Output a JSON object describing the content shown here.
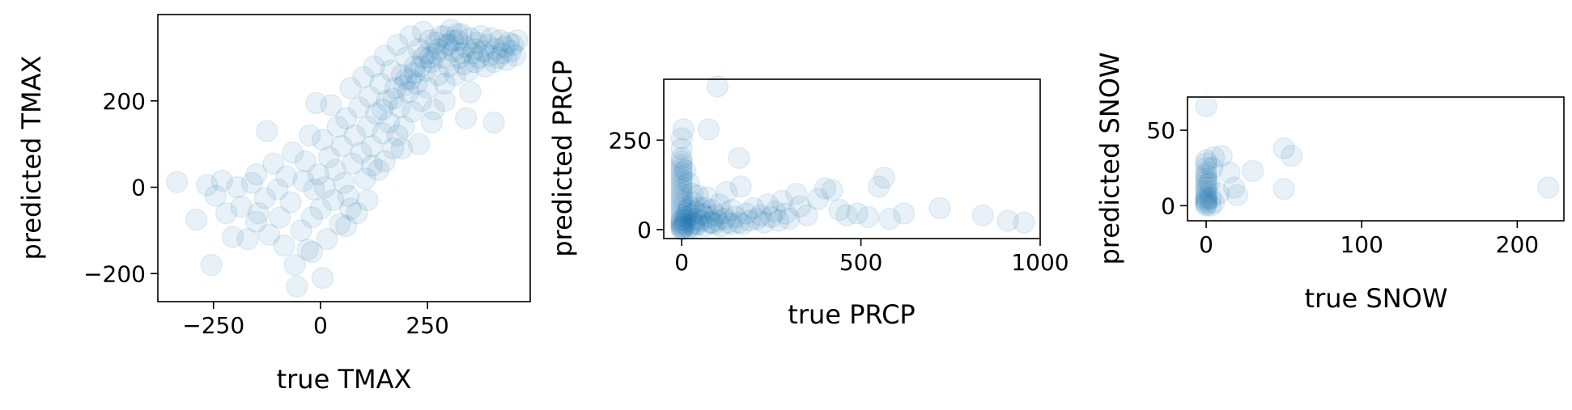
{
  "chart_data": [
    {
      "type": "scatter",
      "name_key": "tmax",
      "xlabel": "true TMAX",
      "ylabel": "predicted TMAX",
      "xlim": [
        -380,
        490
      ],
      "ylim": [
        -265,
        400
      ],
      "xticks": [
        -250,
        0,
        250
      ],
      "yticks": [
        -200,
        0,
        200
      ],
      "xtick_labels": [
        "−250",
        "0",
        "250"
      ],
      "ytick_labels": [
        "−200",
        "0",
        "200"
      ],
      "grid": false,
      "color": "#1f77b4",
      "marker_alpha": 0.1,
      "points": [
        [
          -335,
          12
        ],
        [
          -290,
          -75
        ],
        [
          -265,
          5
        ],
        [
          -255,
          -180
        ],
        [
          -245,
          -20
        ],
        [
          -230,
          15
        ],
        [
          -220,
          -60
        ],
        [
          -205,
          -115
        ],
        [
          -195,
          0
        ],
        [
          -185,
          -45
        ],
        [
          -170,
          -120
        ],
        [
          -160,
          10
        ],
        [
          -150,
          30
        ],
        [
          -145,
          -60
        ],
        [
          -130,
          -25
        ],
        [
          -125,
          130
        ],
        [
          -120,
          -110
        ],
        [
          -110,
          55
        ],
        [
          -100,
          -5
        ],
        [
          -95,
          -70
        ],
        [
          -85,
          -135
        ],
        [
          -80,
          25
        ],
        [
          -70,
          -35
        ],
        [
          -65,
          80
        ],
        [
          -60,
          -180
        ],
        [
          -55,
          -230
        ],
        [
          -45,
          -100
        ],
        [
          -40,
          15
        ],
        [
          -35,
          60
        ],
        [
          -30,
          -145
        ],
        [
          -25,
          120
        ],
        [
          -20,
          -70
        ],
        [
          -15,
          -5
        ],
        [
          -10,
          195
        ],
        [
          -5,
          30
        ],
        [
          0,
          -50
        ],
        [
          5,
          -210
        ],
        [
          5,
          110
        ],
        [
          10,
          0
        ],
        [
          15,
          -120
        ],
        [
          20,
          70
        ],
        [
          25,
          190
        ],
        [
          30,
          -30
        ],
        [
          35,
          40
        ],
        [
          40,
          140
        ],
        [
          45,
          -85
        ],
        [
          50,
          95
        ],
        [
          55,
          10
        ],
        [
          60,
          160
        ],
        [
          65,
          -20
        ],
        [
          70,
          230
        ],
        [
          75,
          55
        ],
        [
          80,
          120
        ],
        [
          85,
          -60
        ],
        [
          90,
          185
        ],
        [
          95,
          80
        ],
        [
          100,
          255
        ],
        [
          105,
          20
        ],
        [
          110,
          140
        ],
        [
          115,
          210
        ],
        [
          120,
          95
        ],
        [
          125,
          280
        ],
        [
          130,
          170
        ],
        [
          135,
          40
        ],
        [
          140,
          240
        ],
        [
          145,
          125
        ],
        [
          150,
          305
        ],
        [
          155,
          200
        ],
        [
          160,
          150
        ],
        [
          165,
          270
        ],
        [
          170,
          90
        ],
        [
          175,
          230
        ],
        [
          180,
          330
        ],
        [
          185,
          185
        ],
        [
          190,
          260
        ],
        [
          195,
          140
        ],
        [
          200,
          300
        ],
        [
          205,
          220
        ],
        [
          210,
          350
        ],
        [
          215,
          175
        ],
        [
          220,
          280
        ],
        [
          225,
          240
        ],
        [
          230,
          320
        ],
        [
          235,
          200
        ],
        [
          240,
          360
        ],
        [
          245,
          270
        ],
        [
          250,
          230
        ],
        [
          255,
          340
        ],
        [
          260,
          290
        ],
        [
          265,
          180
        ],
        [
          270,
          310
        ],
        [
          275,
          260
        ],
        [
          280,
          350
        ],
        [
          285,
          300
        ],
        [
          290,
          240
        ],
        [
          295,
          330
        ],
        [
          300,
          280
        ],
        [
          305,
          365
        ],
        [
          310,
          315
        ],
        [
          315,
          260
        ],
        [
          320,
          340
        ],
        [
          325,
          300
        ],
        [
          330,
          355
        ],
        [
          335,
          285
        ],
        [
          340,
          325
        ],
        [
          345,
          270
        ],
        [
          350,
          345
        ],
        [
          355,
          310
        ],
        [
          360,
          290
        ],
        [
          365,
          335
        ],
        [
          370,
          300
        ],
        [
          375,
          350
        ],
        [
          380,
          315
        ],
        [
          385,
          280
        ],
        [
          390,
          330
        ],
        [
          395,
          305
        ],
        [
          400,
          345
        ],
        [
          405,
          290
        ],
        [
          410,
          320
        ],
        [
          415,
          300
        ],
        [
          420,
          340
        ],
        [
          425,
          310
        ],
        [
          430,
          325
        ],
        [
          435,
          295
        ],
        [
          440,
          335
        ],
        [
          445,
          315
        ],
        [
          450,
          330
        ],
        [
          455,
          305
        ],
        [
          460,
          340
        ],
        [
          150,
          60
        ],
        [
          190,
          90
        ],
        [
          260,
          150
        ],
        [
          340,
          160
        ],
        [
          405,
          150
        ],
        [
          180,
          120
        ],
        [
          110,
          -30
        ],
        [
          -20,
          -150
        ],
        [
          60,
          -90
        ],
        [
          230,
          100
        ],
        [
          120,
          50
        ],
        [
          70,
          -50
        ],
        [
          290,
          200
        ],
        [
          350,
          220
        ],
        [
          -150,
          -80
        ],
        [
          200,
          250
        ],
        [
          240,
          300
        ],
        [
          275,
          320
        ],
        [
          310,
          340
        ],
        [
          330,
          310
        ],
        [
          360,
          320
        ],
        [
          290,
          350
        ],
        [
          250,
          310
        ],
        [
          220,
          265
        ],
        [
          195,
          235
        ],
        [
          170,
          205
        ],
        [
          145,
          180
        ],
        [
          300,
          330
        ],
        [
          320,
          355
        ],
        [
          270,
          335
        ],
        [
          255,
          300
        ],
        [
          235,
          280
        ],
        [
          210,
          250
        ]
      ]
    },
    {
      "type": "scatter",
      "name_key": "prcp",
      "xlabel": "true PRCP",
      "ylabel": "predicted PRCP",
      "xlim": [
        -50,
        1000
      ],
      "ylim": [
        -25,
        420
      ],
      "xticks": [
        0,
        500,
        1000
      ],
      "yticks": [
        0,
        250
      ],
      "xtick_labels": [
        "0",
        "500",
        "1000"
      ],
      "ytick_labels": [
        "0",
        "250"
      ],
      "grid": false,
      "color": "#1f77b4",
      "marker_alpha": 0.1,
      "points": [
        [
          0,
          0
        ],
        [
          0,
          5
        ],
        [
          0,
          10
        ],
        [
          0,
          15
        ],
        [
          0,
          20
        ],
        [
          0,
          25
        ],
        [
          0,
          30
        ],
        [
          0,
          40
        ],
        [
          0,
          50
        ],
        [
          0,
          60
        ],
        [
          0,
          70
        ],
        [
          0,
          80
        ],
        [
          0,
          90
        ],
        [
          0,
          100
        ],
        [
          0,
          110
        ],
        [
          0,
          120
        ],
        [
          0,
          130
        ],
        [
          0,
          140
        ],
        [
          0,
          150
        ],
        [
          0,
          160
        ],
        [
          0,
          170
        ],
        [
          0,
          180
        ],
        [
          0,
          190
        ],
        [
          0,
          200
        ],
        [
          0,
          225
        ],
        [
          0,
          255
        ],
        [
          5,
          280
        ],
        [
          3,
          2
        ],
        [
          5,
          8
        ],
        [
          8,
          15
        ],
        [
          10,
          25
        ],
        [
          12,
          35
        ],
        [
          15,
          45
        ],
        [
          18,
          55
        ],
        [
          20,
          5
        ],
        [
          22,
          65
        ],
        [
          25,
          12
        ],
        [
          28,
          40
        ],
        [
          30,
          20
        ],
        [
          33,
          75
        ],
        [
          35,
          8
        ],
        [
          38,
          50
        ],
        [
          40,
          30
        ],
        [
          45,
          15
        ],
        [
          50,
          60
        ],
        [
          55,
          25
        ],
        [
          60,
          40
        ],
        [
          65,
          10
        ],
        [
          70,
          90
        ],
        [
          75,
          35
        ],
        [
          80,
          20
        ],
        [
          85,
          55
        ],
        [
          90,
          15
        ],
        [
          95,
          40
        ],
        [
          100,
          25
        ],
        [
          105,
          70
        ],
        [
          110,
          10
        ],
        [
          115,
          45
        ],
        [
          120,
          30
        ],
        [
          125,
          105
        ],
        [
          130,
          20
        ],
        [
          140,
          55
        ],
        [
          150,
          35
        ],
        [
          160,
          200
        ],
        [
          165,
          120
        ],
        [
          170,
          15
        ],
        [
          180,
          45
        ],
        [
          190,
          25
        ],
        [
          200,
          60
        ],
        [
          210,
          30
        ],
        [
          220,
          40
        ],
        [
          230,
          20
        ],
        [
          240,
          70
        ],
        [
          250,
          35
        ],
        [
          260,
          50
        ],
        [
          270,
          25
        ],
        [
          280,
          80
        ],
        [
          290,
          45
        ],
        [
          300,
          30
        ],
        [
          320,
          100
        ],
        [
          330,
          65
        ],
        [
          350,
          40
        ],
        [
          380,
          85
        ],
        [
          400,
          115
        ],
        [
          420,
          110
        ],
        [
          440,
          55
        ],
        [
          460,
          40
        ],
        [
          490,
          45
        ],
        [
          520,
          35
        ],
        [
          550,
          120
        ],
        [
          565,
          145
        ],
        [
          580,
          30
        ],
        [
          620,
          45
        ],
        [
          720,
          60
        ],
        [
          840,
          40
        ],
        [
          910,
          25
        ],
        [
          955,
          20
        ],
        [
          100,
          400
        ],
        [
          75,
          280
        ],
        [
          160,
          20
        ],
        [
          140,
          15
        ],
        [
          55,
          45
        ],
        [
          45,
          95
        ],
        [
          20,
          130
        ],
        [
          10,
          165
        ],
        [
          30,
          100
        ],
        [
          65,
          60
        ],
        [
          85,
          20
        ],
        [
          35,
          15
        ]
      ]
    },
    {
      "type": "scatter",
      "name_key": "snow",
      "xlabel": "true SNOW",
      "ylabel": "predicted SNOW",
      "xlim": [
        -12,
        230
      ],
      "ylim": [
        -10,
        72
      ],
      "xticks": [
        0,
        100,
        200
      ],
      "yticks": [
        0,
        50
      ],
      "xtick_labels": [
        "0",
        "100",
        "200"
      ],
      "ytick_labels": [
        "0",
        "50"
      ],
      "grid": false,
      "color": "#1f77b4",
      "marker_alpha": 0.1,
      "points": [
        [
          0,
          0
        ],
        [
          0,
          1
        ],
        [
          0,
          2
        ],
        [
          0,
          3
        ],
        [
          0,
          4
        ],
        [
          0,
          5
        ],
        [
          0,
          6
        ],
        [
          0,
          8
        ],
        [
          0,
          10
        ],
        [
          0,
          12
        ],
        [
          0,
          14
        ],
        [
          0,
          16
        ],
        [
          0,
          18
        ],
        [
          0,
          20
        ],
        [
          0,
          22
        ],
        [
          0,
          25
        ],
        [
          0,
          28
        ],
        [
          0,
          30
        ],
        [
          0,
          66
        ],
        [
          3,
          0
        ],
        [
          3,
          5
        ],
        [
          5,
          2
        ],
        [
          5,
          32
        ],
        [
          8,
          8
        ],
        [
          10,
          33
        ],
        [
          15,
          22
        ],
        [
          18,
          12
        ],
        [
          20,
          7
        ],
        [
          30,
          23
        ],
        [
          50,
          38
        ],
        [
          50,
          11
        ],
        [
          55,
          33
        ],
        [
          220,
          12
        ],
        [
          2,
          15
        ],
        [
          4,
          25
        ]
      ]
    }
  ]
}
